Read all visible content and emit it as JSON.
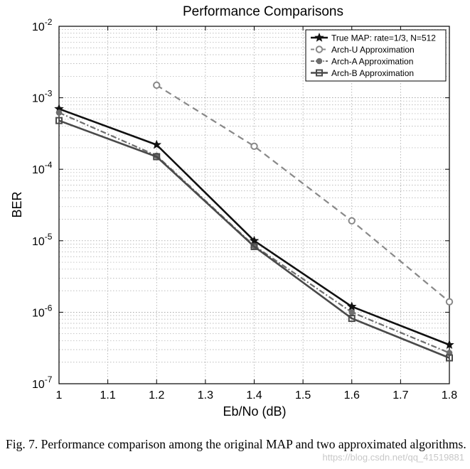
{
  "chart_data": {
    "type": "line",
    "title": "Performance Comparisons",
    "xlabel": "Eb/No (dB)",
    "ylabel": "BER",
    "xlim": [
      1,
      1.8
    ],
    "ylim": [
      1e-07,
      0.01
    ],
    "yscale": "log",
    "grid": true,
    "legend_position": "top-right",
    "x_ticks": [
      "1",
      "1.1",
      "1.2",
      "1.3",
      "1.4",
      "1.5",
      "1.6",
      "1.7",
      "1.8"
    ],
    "y_ticks": [
      {
        "base": "10",
        "exp": "-7"
      },
      {
        "base": "10",
        "exp": "-6"
      },
      {
        "base": "10",
        "exp": "-5"
      },
      {
        "base": "10",
        "exp": "-4"
      },
      {
        "base": "10",
        "exp": "-3"
      },
      {
        "base": "10",
        "exp": "-2"
      }
    ],
    "series": [
      {
        "name": "True MAP: rate=1/3, N=512",
        "marker": "star",
        "dash": "solid",
        "color": "#111111",
        "points": [
          [
            1.0,
            0.0007
          ],
          [
            1.2,
            0.00022
          ],
          [
            1.4,
            1e-05
          ],
          [
            1.6,
            1.2e-06
          ],
          [
            1.8,
            3.5e-07
          ]
        ]
      },
      {
        "name": "Arch-U Approximation",
        "marker": "circle",
        "dash": "dashed",
        "color": "#888888",
        "points": [
          [
            1.2,
            0.0015
          ],
          [
            1.4,
            0.00021
          ],
          [
            1.6,
            1.9e-05
          ],
          [
            1.8,
            1.4e-06
          ]
        ]
      },
      {
        "name": "Arch-A Approximation",
        "marker": "dot",
        "dash": "dashdot",
        "color": "#6e6e6e",
        "points": [
          [
            1.0,
            0.00062
          ],
          [
            1.2,
            0.000155
          ],
          [
            1.4,
            8.5e-06
          ],
          [
            1.6,
            1e-06
          ],
          [
            1.8,
            2.7e-07
          ]
        ]
      },
      {
        "name": "Arch-B Approximation",
        "marker": "square",
        "dash": "solid",
        "color": "#4a4a4a",
        "points": [
          [
            1.0,
            0.00048
          ],
          [
            1.2,
            0.00015
          ],
          [
            1.4,
            8.3e-06
          ],
          [
            1.6,
            8.2e-07
          ],
          [
            1.8,
            2.3e-07
          ]
        ]
      }
    ]
  },
  "caption": {
    "text": "Fig. 7.  Performance comparison among the original MAP and two approximated algorithms."
  },
  "watermark": "https://blog.csdn.net/qq_41519881"
}
